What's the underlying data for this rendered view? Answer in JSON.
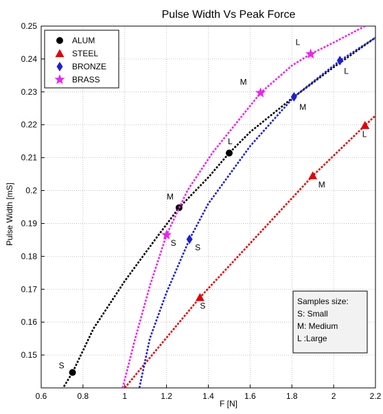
{
  "chart_data": {
    "type": "line",
    "title": "Pulse Width Vs Peak Force",
    "xlabel": "F  [N]",
    "ylabel": "Pulse Width   [mS]",
    "xlim": [
      0.6,
      2.2
    ],
    "ylim": [
      0.14,
      0.25
    ],
    "x_ticks": [
      "0.6",
      "0.8",
      "1",
      "1.2",
      "1.4",
      "1.6",
      "1.8",
      "2",
      "2.2"
    ],
    "y_ticks": [
      "0.15",
      "0.16",
      "0.17",
      "0.18",
      "0.19",
      "0.2",
      "0.21",
      "0.22",
      "0.23",
      "0.24",
      "0.25"
    ],
    "grid": true,
    "legend_position": "top-left",
    "series": [
      {
        "name": "ALUM",
        "color": "#000000",
        "marker": "circle",
        "curve": {
          "x": [
            0.7,
            0.75,
            0.85,
            1.0,
            1.15,
            1.26,
            1.4,
            1.5,
            1.6,
            1.8,
            2.0,
            2.2
          ],
          "y": [
            0.1395,
            0.1447,
            0.158,
            0.1725,
            0.1855,
            0.1948,
            0.204,
            0.2114,
            0.2178,
            0.228,
            0.2375,
            0.2465
          ]
        },
        "points": [
          {
            "x": 0.75,
            "y": 0.1447,
            "label": "S"
          },
          {
            "x": 1.26,
            "y": 0.1948,
            "label": "M"
          },
          {
            "x": 1.5,
            "y": 0.2114,
            "label": "L"
          }
        ]
      },
      {
        "name": "STEEL",
        "color": "#e60000",
        "marker": "triangle",
        "curve": {
          "x": [
            1.0,
            1.36,
            1.9,
            2.15,
            2.2
          ],
          "y": [
            0.14,
            0.1675,
            0.2045,
            0.2198,
            0.2228
          ]
        },
        "points": [
          {
            "x": 1.36,
            "y": 0.1675,
            "label": "S"
          },
          {
            "x": 1.9,
            "y": 0.2045,
            "label": "M"
          },
          {
            "x": 2.15,
            "y": 0.2198,
            "label": "L"
          }
        ]
      },
      {
        "name": "BRONZE",
        "color": "#1e1ed8",
        "marker": "diamond",
        "curve": {
          "x": [
            1.07,
            1.12,
            1.2,
            1.31,
            1.4,
            1.6,
            1.81,
            2.03,
            2.2
          ],
          "y": [
            0.14,
            0.155,
            0.169,
            0.1852,
            0.196,
            0.2135,
            0.2285,
            0.2395,
            0.2465
          ]
        },
        "points": [
          {
            "x": 1.31,
            "y": 0.1852,
            "label": "S"
          },
          {
            "x": 1.81,
            "y": 0.2285,
            "label": "M"
          },
          {
            "x": 2.03,
            "y": 0.2395,
            "label": "L"
          }
        ]
      },
      {
        "name": "BRASS",
        "color": "#ee22ee",
        "marker": "star",
        "curve": {
          "x": [
            0.99,
            1.05,
            1.12,
            1.2,
            1.3,
            1.42,
            1.65,
            1.8,
            1.89,
            2.0,
            2.15
          ],
          "y": [
            0.14,
            0.155,
            0.171,
            0.1865,
            0.2,
            0.2115,
            0.2297,
            0.238,
            0.2415,
            0.245,
            0.25
          ]
        },
        "points": [
          {
            "x": 1.2,
            "y": 0.1865,
            "label": "S"
          },
          {
            "x": 1.65,
            "y": 0.2297,
            "label": "M"
          },
          {
            "x": 1.89,
            "y": 0.2415,
            "label": "L"
          }
        ]
      }
    ],
    "annotation_box": {
      "lines": [
        "Samples size:",
        "S: Small",
        "M: Medium",
        "L :Large"
      ]
    }
  }
}
